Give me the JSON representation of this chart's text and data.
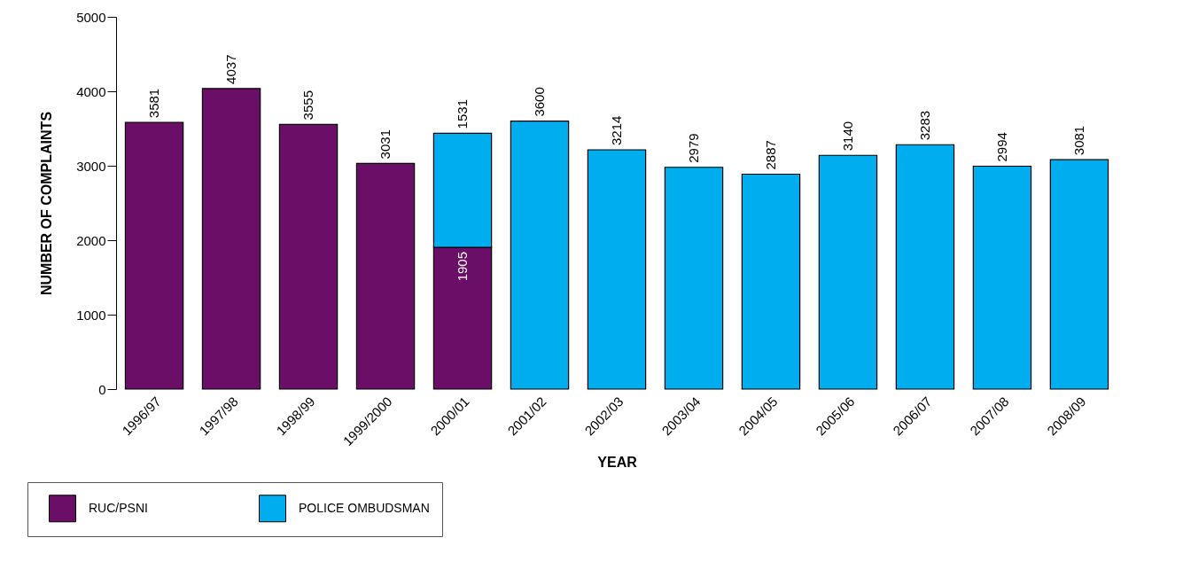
{
  "chart_data": {
    "type": "bar",
    "stacked": true,
    "xlabel": "YEAR",
    "ylabel": "NUMBER OF COMPLAINTS",
    "categories": [
      "1996/97",
      "1997/98",
      "1998/99",
      "1999/2000",
      "2000/01",
      "2001/02",
      "2002/03",
      "2003/04",
      "2004/05",
      "2005/06",
      "2006/07",
      "2007/08",
      "2008/09"
    ],
    "series": [
      {
        "name": "RUC/PSNI",
        "color": "#6b0e68",
        "values": [
          3581,
          4037,
          3555,
          3031,
          1905,
          null,
          null,
          null,
          null,
          null,
          null,
          null,
          null
        ]
      },
      {
        "name": "POLICE OMBUDSMAN",
        "color": "#00aeef",
        "values": [
          null,
          null,
          null,
          null,
          1531,
          3600,
          3214,
          2979,
          2887,
          3140,
          3283,
          2994,
          3081
        ]
      }
    ],
    "ylim": [
      0,
      5000
    ],
    "yticks": [
      0,
      1000,
      2000,
      3000,
      4000,
      5000
    ],
    "data_labels": true,
    "legend": "bottom left"
  }
}
